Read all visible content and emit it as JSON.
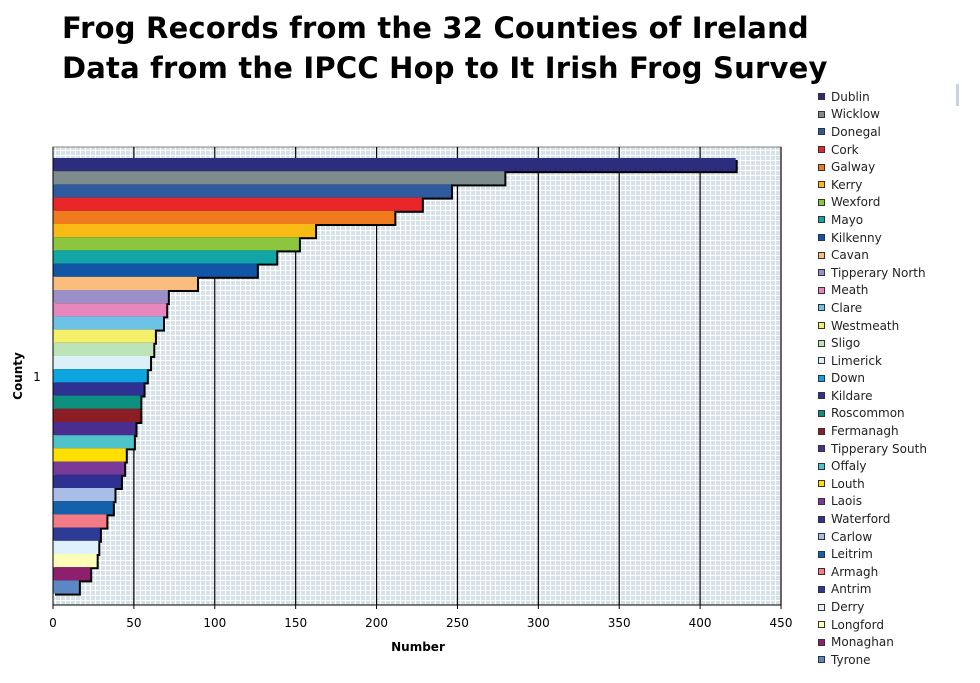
{
  "title_lines": [
    "Frog Records from the 32 Counties of Ireland",
    "Data from the IPCC Hop to It Irish Frog Survey"
  ],
  "chart_data": {
    "type": "bar",
    "orientation": "horizontal",
    "xlabel": "Number",
    "ylabel": "County",
    "category_label": "1",
    "xlim": [
      0,
      450
    ],
    "xticks": [
      0,
      50,
      100,
      150,
      200,
      250,
      300,
      350,
      400,
      450
    ],
    "grid": true,
    "legend_position": "right",
    "series": [
      {
        "name": "Dublin",
        "value": 422,
        "color": "#2d2d7d"
      },
      {
        "name": "Wicklow",
        "value": 279,
        "color": "#7f8c8d"
      },
      {
        "name": "Donegal",
        "value": 246,
        "color": "#2e5a9e"
      },
      {
        "name": "Cork",
        "value": 228,
        "color": "#e8262a"
      },
      {
        "name": "Galway",
        "value": 211,
        "color": "#f07a1e"
      },
      {
        "name": "Kerry",
        "value": 162,
        "color": "#f7bb14"
      },
      {
        "name": "Wexford",
        "value": 152,
        "color": "#8cc63f"
      },
      {
        "name": "Mayo",
        "value": 138,
        "color": "#12a5a5"
      },
      {
        "name": "Kilkenny",
        "value": 126,
        "color": "#1155a6"
      },
      {
        "name": "Cavan",
        "value": 89,
        "color": "#fbbd7d"
      },
      {
        "name": "Tipperary North",
        "value": 71,
        "color": "#9a8fc7"
      },
      {
        "name": "Meath",
        "value": 70,
        "color": "#e886be"
      },
      {
        "name": "Clare",
        "value": 68,
        "color": "#6cc3e6"
      },
      {
        "name": "Westmeath",
        "value": 63,
        "color": "#f5f06a"
      },
      {
        "name": "Sligo",
        "value": 62,
        "color": "#bde3b8"
      },
      {
        "name": "Limerick",
        "value": 60,
        "color": "#dcf0f7"
      },
      {
        "name": "Down",
        "value": 58,
        "color": "#0ca5df"
      },
      {
        "name": "Kildare",
        "value": 56,
        "color": "#2e3191"
      },
      {
        "name": "Roscommon",
        "value": 54,
        "color": "#0d9080"
      },
      {
        "name": "Fermanagh",
        "value": 54,
        "color": "#8b1d25"
      },
      {
        "name": "Tipperary South",
        "value": 51,
        "color": "#4a2d8e"
      },
      {
        "name": "Offaly",
        "value": 50,
        "color": "#4fc3c9"
      },
      {
        "name": "Louth",
        "value": 45,
        "color": "#ffe000"
      },
      {
        "name": "Laois",
        "value": 44,
        "color": "#7a3b98"
      },
      {
        "name": "Waterford",
        "value": 42,
        "color": "#2e3191"
      },
      {
        "name": "Carlow",
        "value": 38,
        "color": "#a9bde6"
      },
      {
        "name": "Leitrim",
        "value": 37,
        "color": "#1560aa"
      },
      {
        "name": "Armagh",
        "value": 33,
        "color": "#f27b86"
      },
      {
        "name": "Antrim",
        "value": 29,
        "color": "#2d3a96"
      },
      {
        "name": "Derry",
        "value": 28,
        "color": "#dff1fb"
      },
      {
        "name": "Longford",
        "value": 27,
        "color": "#fefcb9"
      },
      {
        "name": "Monaghan",
        "value": 23,
        "color": "#8e1f6d"
      },
      {
        "name": "Tyrone",
        "value": 16,
        "color": "#5b87c4"
      }
    ]
  }
}
